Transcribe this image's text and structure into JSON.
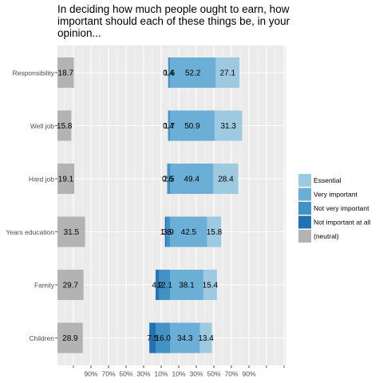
{
  "chart_data": {
    "type": "bar",
    "title": "In deciding how much people ought to earn, how important should each of these things be, in your opinion...",
    "categories": [
      "Responsibility",
      "Well job",
      "Hard job",
      "Years education",
      "Family",
      "Children"
    ],
    "series": [
      {
        "name": "Not important at all",
        "color": "#2171b5",
        "values": [
          0.4,
          0.4,
          0.6,
          1.8,
          4.2,
          7.5
        ]
      },
      {
        "name": "Not very important",
        "color": "#4292c6",
        "values": [
          1.6,
          1.7,
          2.5,
          3.9,
          12.1,
          16.0
        ]
      },
      {
        "name": "Very important",
        "color": "#6baed6",
        "values": [
          52.2,
          50.9,
          49.4,
          42.5,
          38.1,
          34.3
        ]
      },
      {
        "name": "Essential",
        "color": "#9ecae1",
        "values": [
          27.1,
          31.3,
          28.4,
          15.8,
          15.4,
          13.4
        ]
      },
      {
        "name": "(neutral)",
        "color": "#b3b3b3",
        "values": [
          18.7,
          15.8,
          19.1,
          31.5,
          29.7,
          28.9
        ]
      }
    ],
    "value_labels": [
      [
        "0.4",
        "1.6",
        "52.2",
        "27.1",
        "18.7"
      ],
      [
        "0.4",
        "1.7",
        "50.9",
        "31.3",
        "15.8"
      ],
      [
        "0.6",
        "2.5",
        "49.4",
        "28.4",
        "19.1"
      ],
      [
        "1.8",
        "3.9",
        "42.5",
        "15.8",
        "31.5"
      ],
      [
        "4.2",
        "12.1",
        "38.1",
        "15.4",
        "29.7"
      ],
      [
        "7.5",
        "16.0",
        "34.3",
        "13.4",
        "28.9"
      ]
    ],
    "x_tick_labels": [
      "90%",
      "70%",
      "50%",
      "30%",
      "10%",
      "10%",
      "30%",
      "50%",
      "70%",
      "90%"
    ],
    "x_tick_values": [
      -90,
      -70,
      -50,
      -30,
      -10,
      10,
      30,
      50,
      70,
      90
    ],
    "legend": {
      "position": "right",
      "order": [
        "Essential",
        "Very important",
        "Not very important",
        "Not important at all",
        "(neutral)"
      ]
    },
    "grid": true
  }
}
